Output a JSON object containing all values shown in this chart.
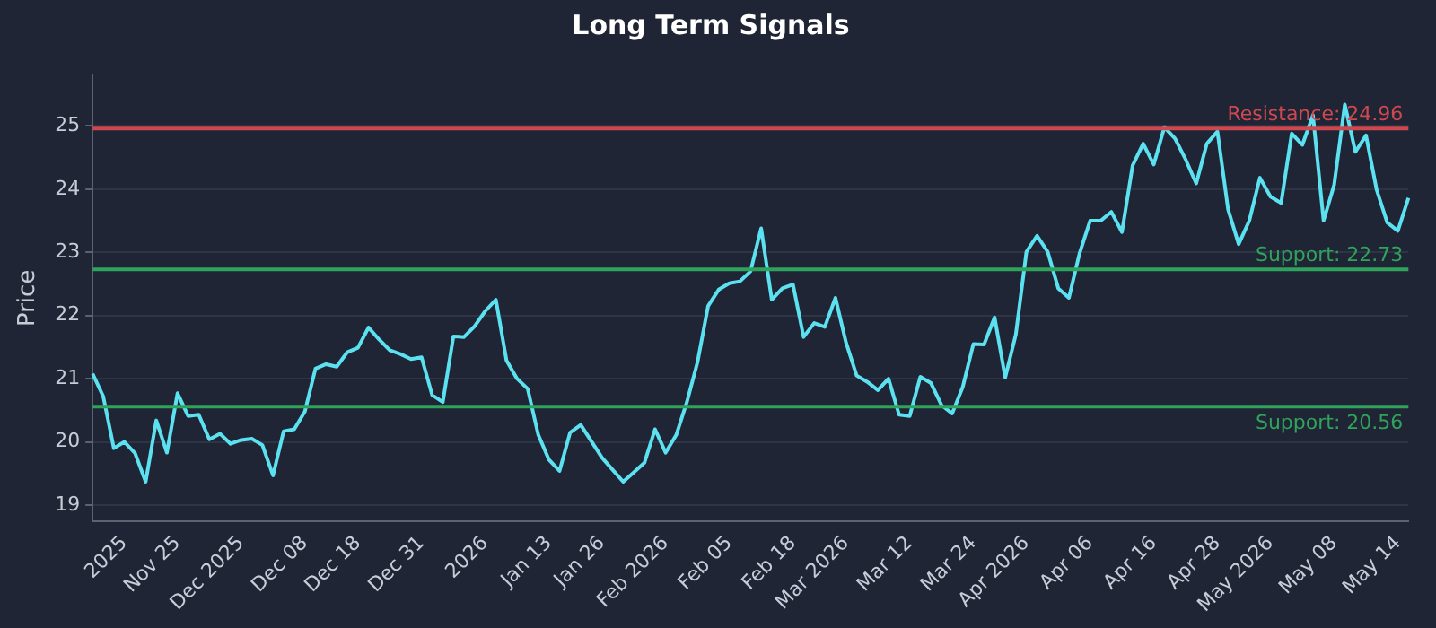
{
  "chart_data": {
    "type": "line",
    "title": "Long Term Signals",
    "ylabel": "Price",
    "categories": [
      null,
      null,
      null,
      "2025",
      null,
      null,
      null,
      null,
      "Nov 25",
      null,
      null,
      null,
      null,
      null,
      "Dec 2025",
      null,
      null,
      null,
      null,
      null,
      "Dec 08",
      null,
      null,
      null,
      null,
      "Dec 18",
      null,
      null,
      null,
      null,
      null,
      "Dec 31",
      null,
      null,
      null,
      null,
      null,
      "2026",
      null,
      null,
      null,
      null,
      null,
      "Jan 13",
      null,
      null,
      null,
      null,
      "Jan 26",
      null,
      null,
      null,
      null,
      null,
      "Feb 2026",
      null,
      null,
      null,
      null,
      null,
      "Feb 05",
      null,
      null,
      null,
      null,
      null,
      "Feb 18",
      null,
      null,
      null,
      null,
      "Mar 2026",
      null,
      null,
      null,
      null,
      null,
      "Mar 12",
      null,
      null,
      null,
      null,
      null,
      "Mar 24",
      null,
      null,
      null,
      null,
      "Apr 2026",
      null,
      null,
      null,
      null,
      null,
      "Apr 06",
      null,
      null,
      null,
      null,
      null,
      "Apr 16",
      null,
      null,
      null,
      null,
      null,
      "Apr 28",
      null,
      null,
      null,
      null,
      "May 2026",
      null,
      null,
      null,
      null,
      null,
      "May 08",
      null,
      null,
      null,
      null,
      null,
      "May 14",
      null
    ],
    "series": [
      {
        "color": "#5ce1f0",
        "values": [
          21.08,
          20.72,
          19.9,
          20.0,
          19.82,
          19.37,
          20.34,
          19.83,
          20.77,
          20.41,
          20.43,
          20.04,
          20.13,
          19.97,
          20.03,
          20.05,
          19.95,
          19.47,
          20.17,
          20.2,
          20.48,
          21.16,
          21.23,
          21.19,
          21.42,
          21.49,
          21.81,
          21.62,
          21.45,
          21.39,
          21.31,
          21.34,
          20.74,
          20.63,
          21.67,
          21.66,
          21.83,
          22.07,
          22.25,
          21.29,
          21.0,
          20.84,
          20.11,
          19.72,
          19.54,
          20.15,
          20.27,
          20.01,
          19.75,
          19.56,
          19.37,
          19.52,
          19.67,
          20.2,
          19.83,
          20.11,
          20.63,
          21.26,
          22.15,
          22.41,
          22.51,
          22.54,
          22.7,
          23.38,
          22.25,
          22.43,
          22.49,
          21.66,
          21.88,
          21.82,
          22.28,
          21.57,
          21.05,
          20.95,
          20.82,
          21.0,
          20.43,
          20.41,
          21.03,
          20.93,
          20.58,
          20.45,
          20.87,
          21.55,
          21.54,
          21.97,
          21.02,
          21.7,
          23.01,
          23.26,
          23.01,
          22.43,
          22.28,
          22.98,
          23.5,
          23.5,
          23.64,
          23.32,
          24.37,
          24.72,
          24.39,
          24.98,
          24.8,
          24.47,
          24.09,
          24.72,
          24.91,
          23.68,
          23.13,
          23.5,
          24.18,
          23.88,
          23.78,
          24.88,
          24.7,
          25.17,
          23.5,
          24.07,
          25.34,
          24.59,
          24.85,
          23.99,
          23.47,
          23.34,
          23.86
        ]
      }
    ],
    "ylim": [
      18.75,
      25.8
    ],
    "yticks": [
      19,
      20,
      21,
      22,
      23,
      24,
      25
    ],
    "grid": "y",
    "legend": false,
    "marker": "none",
    "line_style": "solid",
    "ref_lines": [
      {
        "axis": "y",
        "value": 24.96,
        "label": "Resistance: 24.96",
        "color": "#d0484f"
      },
      {
        "axis": "y",
        "value": 22.73,
        "label": "Support: 22.73",
        "color": "#2fa35c"
      },
      {
        "axis": "y",
        "value": 20.56,
        "label": "Support: 20.56",
        "color": "#2fa35c"
      }
    ]
  }
}
